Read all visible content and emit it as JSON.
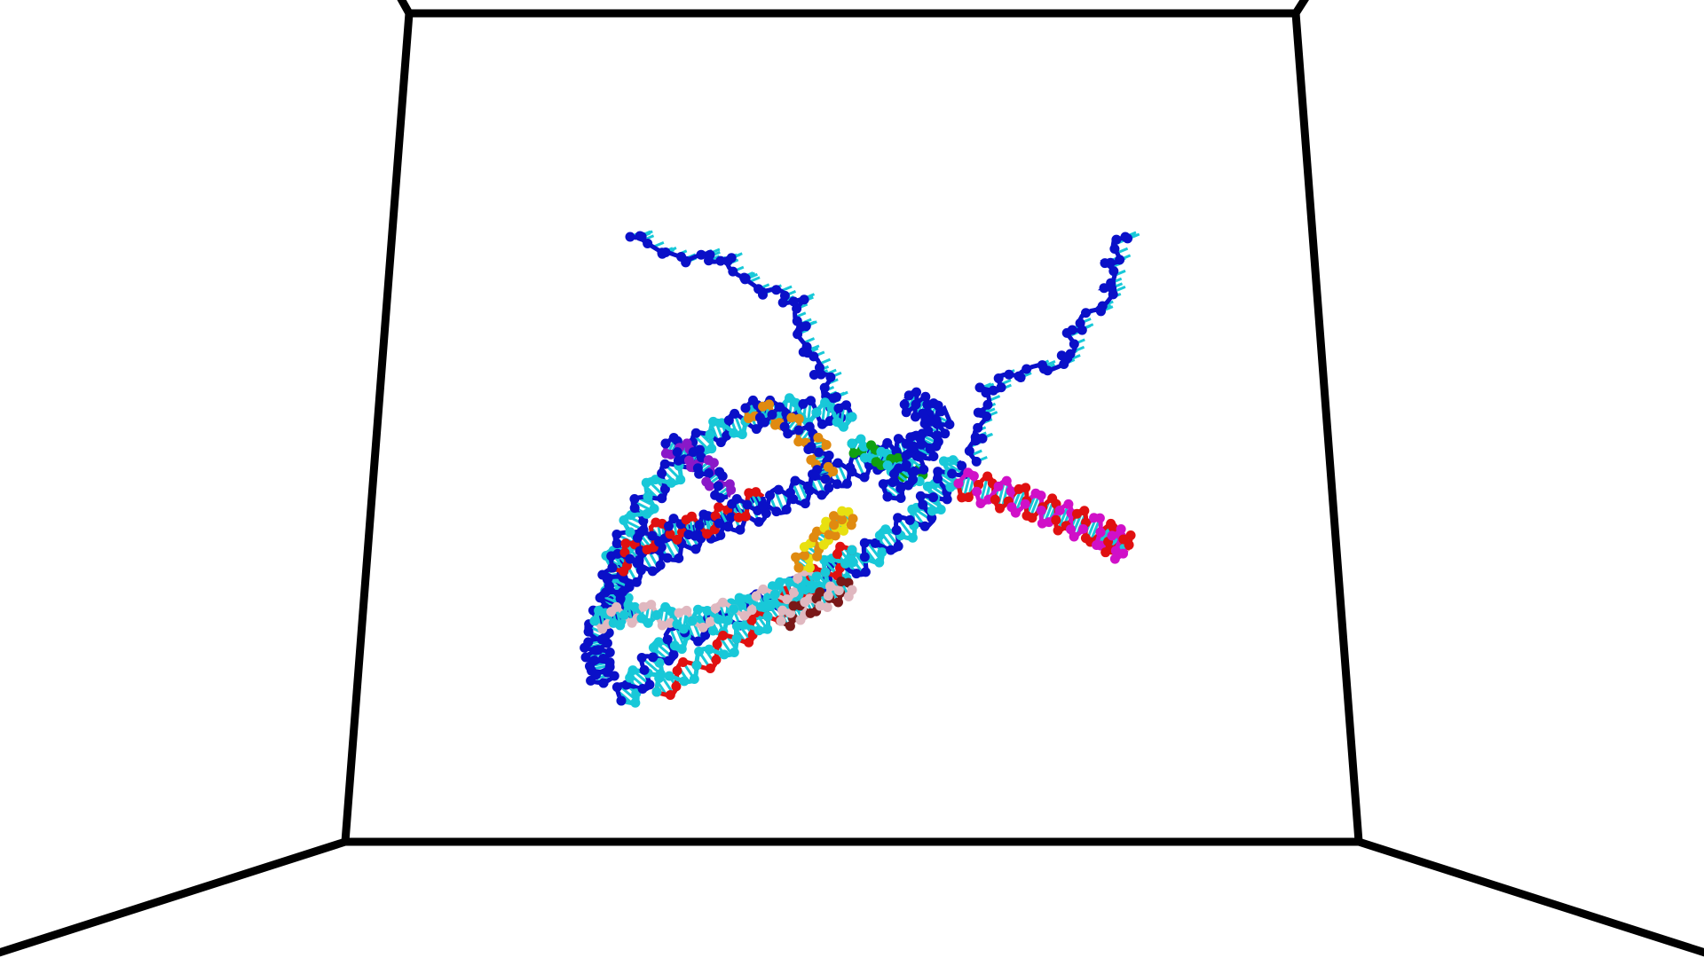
{
  "scene": {
    "kind": "3d-molecular-viewer",
    "subject": "chromatin-nucleosome-dna-model",
    "box_line_color": "#000000",
    "background_color": "#ffffff"
  },
  "colors": {
    "backbone_primary": "#0a10c8",
    "backbone_secondary": "#18c8d8",
    "strand_red": "#e01010",
    "strand_magenta": "#d010c8",
    "strand_purple": "#8a18c8",
    "strand_orange": "#e08a10",
    "strand_yellow": "#e8e010",
    "strand_green": "#10a010",
    "strand_pink": "#e0b8c0",
    "strand_brown": "#7a1818"
  }
}
